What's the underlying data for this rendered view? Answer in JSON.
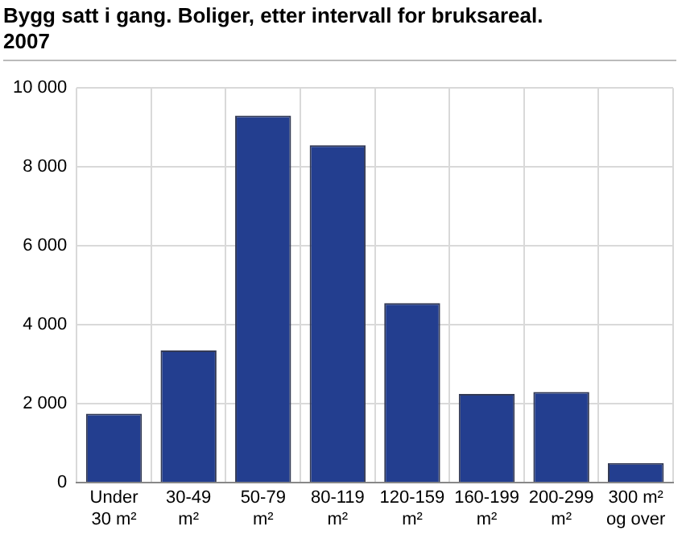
{
  "chart_data": {
    "type": "bar",
    "title": "Bygg satt i gang. Boliger, etter intervall for bruksareal.",
    "subtitle": "2007",
    "categories": [
      "Under 30 m²",
      "30-49 m²",
      "50-79 m²",
      "80-119 m²",
      "120-159 m²",
      "160-199 m²",
      "200-299 m²",
      "300 m² og over"
    ],
    "values": [
      1750,
      3350,
      9300,
      8550,
      4550,
      2250,
      2300,
      500
    ],
    "color": "#233e8f",
    "ylim": [
      0,
      10000
    ],
    "yticks": [
      0,
      {
        "value": 2000,
        "label": "2 000"
      },
      {
        "value": 4000,
        "label": "4 000"
      },
      {
        "value": 6000,
        "label": "6 000"
      },
      {
        "value": 8000,
        "label": "8 000"
      },
      {
        "value": 10000,
        "label": "10 000"
      }
    ],
    "grid": true
  }
}
